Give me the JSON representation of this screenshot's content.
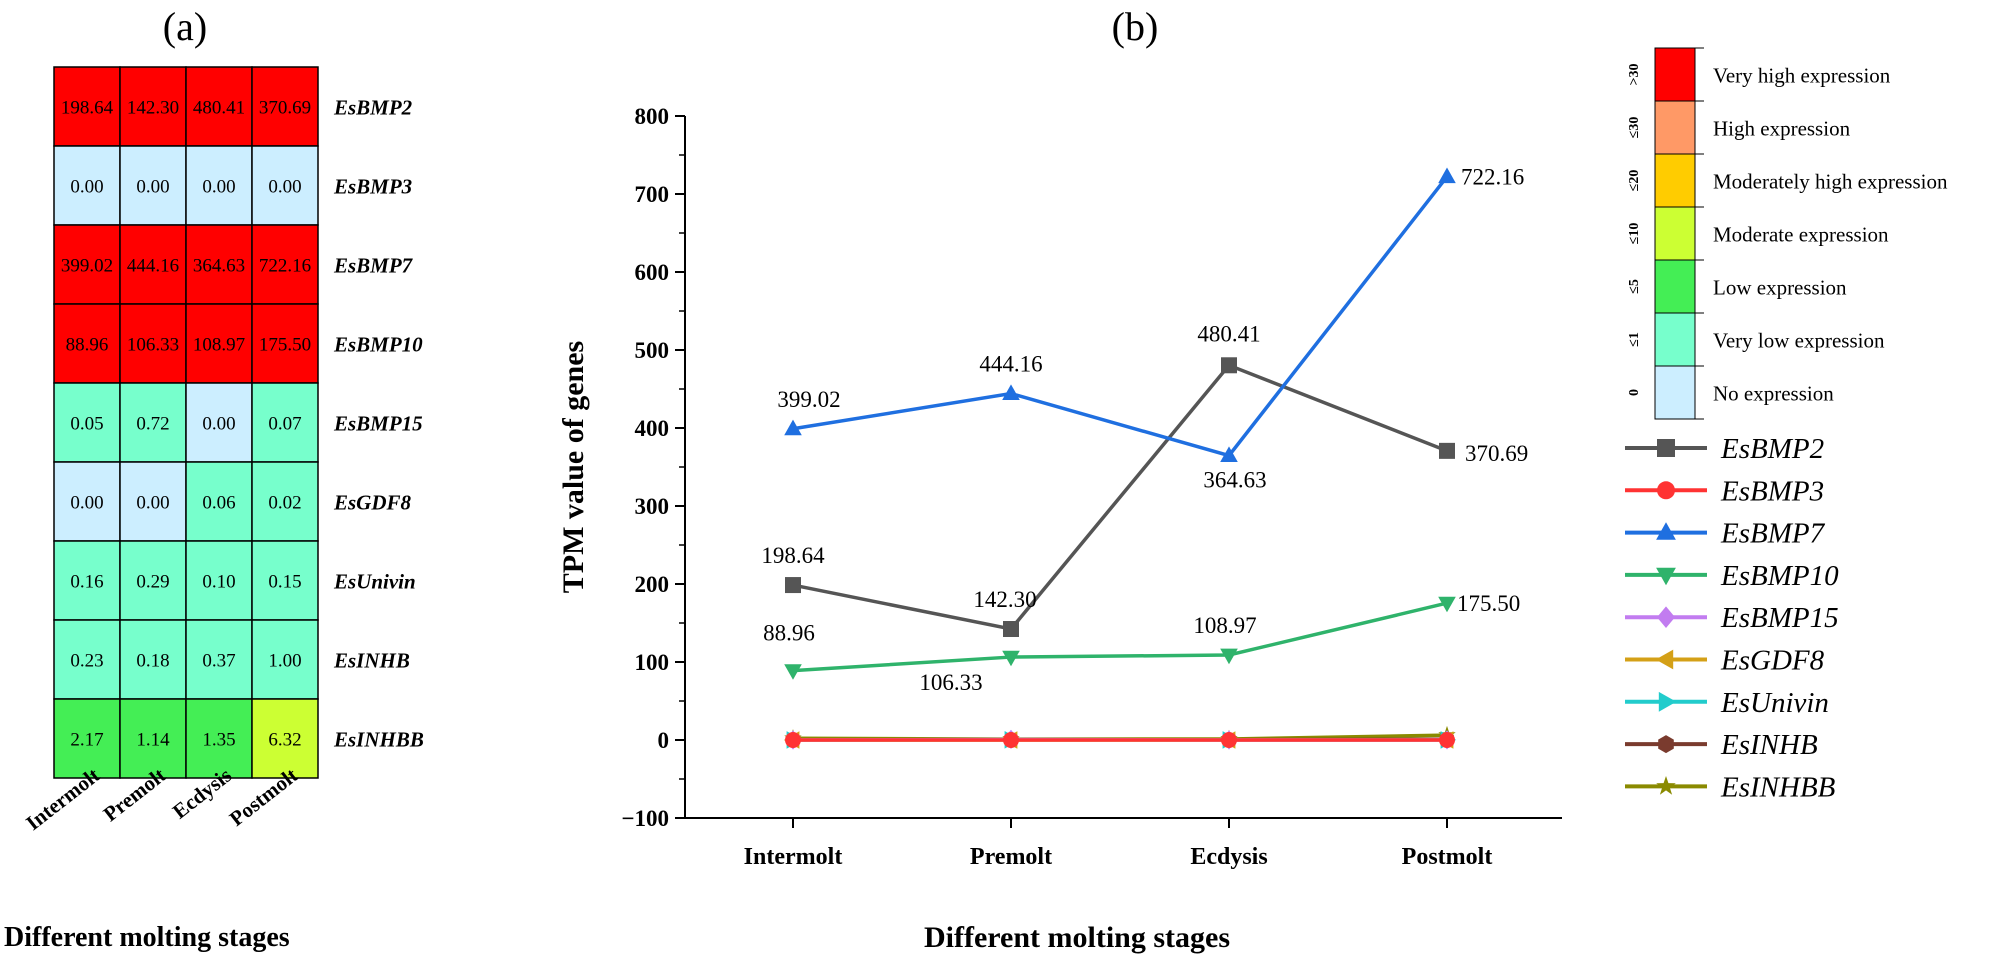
{
  "panel_a_label": "(a)",
  "panel_b_label": "(b)",
  "chart_data": [
    {
      "type": "heatmap",
      "panel": "(a)",
      "xlabel": "Different molting stages",
      "categories": [
        "Intermolt",
        "Premolt",
        "Ecdysis",
        "Postmolt"
      ],
      "rows": [
        "EsBMP2",
        "EsBMP3",
        "EsBMP7",
        "EsBMP10",
        "EsBMP15",
        "EsGDF8",
        "EsUnivin",
        "EsINHB",
        "EsINHBB"
      ],
      "values": [
        [
          "198.64",
          "142.30",
          "480.41",
          "370.69"
        ],
        [
          "0.00",
          "0.00",
          "0.00",
          "0.00"
        ],
        [
          "399.02",
          "444.16",
          "364.63",
          "722.16"
        ],
        [
          "88.96",
          "106.33",
          "108.97",
          "175.50"
        ],
        [
          "0.05",
          "0.72",
          "0.00",
          "0.07"
        ],
        [
          "0.00",
          "0.00",
          "0.06",
          "0.02"
        ],
        [
          "0.16",
          "0.29",
          "0.10",
          "0.15"
        ],
        [
          "0.23",
          "0.18",
          "0.37",
          "1.00"
        ],
        [
          "2.17",
          "1.14",
          "1.35",
          "6.32"
        ]
      ],
      "color_scale": [
        {
          "range": ">30",
          "label": "Very high expression",
          "color": "#ff0000"
        },
        {
          "range": "≤30",
          "label": "High expression",
          "color": "#ff9966"
        },
        {
          "range": "≤20",
          "label": "Moderately high expression",
          "color": "#ffcc00"
        },
        {
          "range": "≤10",
          "label": "Moderate expression",
          "color": "#ccff33"
        },
        {
          "range": "≤5",
          "label": "Low expression",
          "color": "#44ee55"
        },
        {
          "range": "≤1",
          "label": "Very low expression",
          "color": "#77ffcc"
        },
        {
          "range": "0",
          "label": "No expression",
          "color": "#cceeff"
        }
      ]
    },
    {
      "type": "line",
      "panel": "(b)",
      "xlabel": "Different molting stages",
      "ylabel": "TPM value of genes",
      "categories": [
        "Intermolt",
        "Premolt",
        "Ecdysis",
        "Postmolt"
      ],
      "ylim": [
        -100,
        800
      ],
      "yticks": [
        -100,
        0,
        100,
        200,
        300,
        400,
        500,
        600,
        700,
        800
      ],
      "series": [
        {
          "name": "EsBMP2",
          "values": [
            198.64,
            142.3,
            480.41,
            370.69
          ],
          "color": "#555555",
          "marker": "square",
          "labels": [
            "198.64",
            "142.30",
            "480.41",
            "370.69"
          ]
        },
        {
          "name": "EsBMP3",
          "values": [
            0.0,
            0.0,
            0.0,
            0.0
          ],
          "color": "#ff3333",
          "marker": "circle"
        },
        {
          "name": "EsBMP7",
          "values": [
            399.02,
            444.16,
            364.63,
            722.16
          ],
          "color": "#1f6fe0",
          "marker": "triangle-up",
          "labels": [
            "399.02",
            "444.16",
            "364.63",
            "722.16"
          ]
        },
        {
          "name": "EsBMP10",
          "values": [
            88.96,
            106.33,
            108.97,
            175.5
          ],
          "color": "#2fb36b",
          "marker": "triangle-down",
          "labels": [
            "88.96",
            "106.33",
            "108.97",
            "175.50"
          ]
        },
        {
          "name": "EsBMP15",
          "values": [
            0.05,
            0.72,
            0.0,
            0.07
          ],
          "color": "#c27cf0",
          "marker": "diamond"
        },
        {
          "name": "EsGDF8",
          "values": [
            0.0,
            0.0,
            0.06,
            0.02
          ],
          "color": "#d4a017",
          "marker": "triangle-left"
        },
        {
          "name": "EsUnivin",
          "values": [
            0.16,
            0.29,
            0.1,
            0.15
          ],
          "color": "#22cccc",
          "marker": "triangle-right"
        },
        {
          "name": "EsINHB",
          "values": [
            0.23,
            0.18,
            0.37,
            1.0
          ],
          "color": "#7a3b2e",
          "marker": "hexagon"
        },
        {
          "name": "EsINHBB",
          "values": [
            2.17,
            1.14,
            1.35,
            6.32
          ],
          "color": "#8a8a00",
          "marker": "star"
        }
      ],
      "legend": "right"
    }
  ]
}
